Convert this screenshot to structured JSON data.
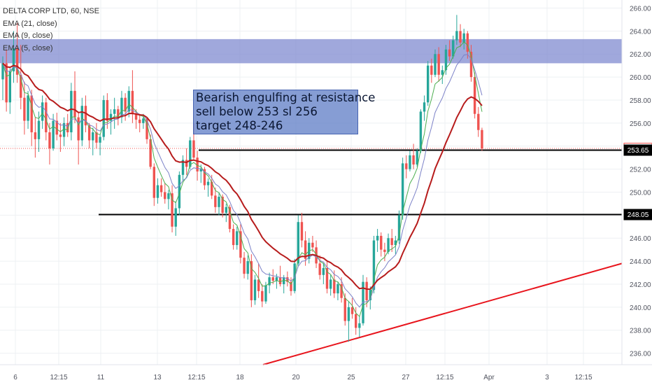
{
  "symbol_title": "DELTA CORP LTD, 60, NSE",
  "indicators": [
    "EMA (21, close)",
    "EMA (9, close)",
    "EMA (5, close)"
  ],
  "annotation": {
    "lines": [
      "Bearish engulfing at resistance",
      "sell below 253 sl 256",
      "target 248-246"
    ]
  },
  "colors": {
    "up": "#26a69a",
    "down": "#ef5350",
    "ema21": "#b71c1c",
    "ema9": "#7c82c8",
    "ema5": "#4caf50",
    "zone": "#7b86cf",
    "trendline": "#e8141c"
  },
  "chart_data": {
    "type": "candlestick",
    "ylim": [
      235,
      266.7
    ],
    "y_ticks": [
      236,
      238,
      240,
      242,
      244,
      246,
      248,
      250,
      252,
      254,
      256,
      258,
      260,
      262,
      264,
      266
    ],
    "x_ticks": [
      "6",
      "12:15",
      "11",
      "13",
      "12:15",
      "18",
      "20",
      "25",
      "27",
      "12:15",
      "Apr",
      "3",
      "12:15"
    ],
    "price_labels": [
      {
        "value": 253.8,
        "label": "253.80",
        "style": "current"
      },
      {
        "value": 253.65,
        "label": "253.65",
        "style": "level"
      },
      {
        "value": 248.05,
        "label": "248.05",
        "style": "level"
      }
    ],
    "resistance_zone": [
      261.2,
      263.3
    ],
    "levels": [
      253.65,
      248.05
    ],
    "trendline": {
      "from": 235.0,
      "to": 243.8
    },
    "candles": [
      [
        259.8,
        261.8,
        258.0,
        261.2
      ],
      [
        261.2,
        262.4,
        257.0,
        257.8
      ],
      [
        257.8,
        260.8,
        256.8,
        260.5
      ],
      [
        260.5,
        264.0,
        259.5,
        262.5
      ],
      [
        262.5,
        264.7,
        259.5,
        260.2
      ],
      [
        260.2,
        262.8,
        257.2,
        258.2
      ],
      [
        258.2,
        259.6,
        255.0,
        256.2
      ],
      [
        256.2,
        258.8,
        255.5,
        258.4
      ],
      [
        258.4,
        258.9,
        254.0,
        255.2
      ],
      [
        255.2,
        256.5,
        253.0,
        254.6
      ],
      [
        254.6,
        257.0,
        253.5,
        256.2
      ],
      [
        256.2,
        258.4,
        255.5,
        257.8
      ],
      [
        257.8,
        258.2,
        254.5,
        255.2
      ],
      [
        255.2,
        256.0,
        252.4,
        253.8
      ],
      [
        253.8,
        256.8,
        253.6,
        256.2
      ],
      [
        256.2,
        256.9,
        254.5,
        255.0
      ],
      [
        255.0,
        256.0,
        253.5,
        254.8
      ],
      [
        254.8,
        256.5,
        254.0,
        256.0
      ],
      [
        256.0,
        256.8,
        254.8,
        255.2
      ],
      [
        255.2,
        259.5,
        254.5,
        258.8
      ],
      [
        258.8,
        260.5,
        256.0,
        256.5
      ],
      [
        256.5,
        257.0,
        252.4,
        254.5
      ],
      [
        254.5,
        258.2,
        254.0,
        257.5
      ],
      [
        257.5,
        258.4,
        255.2,
        255.8
      ],
      [
        255.8,
        256.0,
        253.8,
        254.5
      ],
      [
        254.5,
        255.6,
        253.2,
        255.2
      ],
      [
        255.2,
        256.0,
        253.8,
        254.3
      ],
      [
        254.3,
        255.0,
        253.2,
        254.8
      ],
      [
        254.8,
        258.4,
        254.5,
        258.0
      ],
      [
        258.0,
        258.6,
        255.5,
        256.2
      ],
      [
        256.2,
        257.2,
        255.0,
        256.8
      ],
      [
        256.8,
        258.2,
        255.5,
        257.2
      ],
      [
        257.2,
        257.5,
        255.8,
        256.5
      ],
      [
        256.5,
        258.8,
        256.0,
        258.2
      ],
      [
        258.2,
        258.6,
        256.2,
        257.0
      ],
      [
        257.0,
        259.2,
        256.5,
        258.8
      ],
      [
        258.8,
        260.6,
        256.0,
        256.8
      ],
      [
        256.8,
        257.2,
        255.5,
        256.3
      ],
      [
        256.3,
        256.8,
        255.2,
        256.0
      ],
      [
        256.0,
        256.8,
        255.5,
        256.4
      ],
      [
        256.4,
        256.5,
        254.2,
        254.6
      ],
      [
        254.6,
        255.0,
        252.0,
        252.2
      ],
      [
        252.2,
        252.5,
        248.8,
        249.5
      ],
      [
        249.5,
        251.2,
        249.0,
        250.6
      ],
      [
        250.6,
        251.2,
        249.6,
        250.0
      ],
      [
        250.0,
        250.8,
        249.0,
        249.4
      ],
      [
        249.4,
        250.2,
        248.5,
        249.9
      ],
      [
        249.9,
        250.6,
        246.5,
        247.0
      ],
      [
        247.0,
        249.2,
        246.2,
        248.6
      ],
      [
        248.6,
        251.8,
        248.0,
        251.5
      ],
      [
        251.5,
        253.2,
        251.0,
        252.8
      ],
      [
        252.8,
        253.8,
        251.5,
        252.2
      ],
      [
        252.2,
        254.8,
        252.0,
        254.5
      ],
      [
        254.5,
        256.0,
        252.8,
        253.0
      ],
      [
        253.0,
        253.6,
        251.0,
        251.8
      ],
      [
        251.8,
        252.4,
        250.8,
        252.0
      ],
      [
        252.0,
        252.2,
        250.2,
        250.6
      ],
      [
        250.6,
        251.2,
        249.6,
        250.9
      ],
      [
        250.9,
        251.5,
        249.4,
        249.7
      ],
      [
        249.7,
        250.4,
        248.2,
        248.7
      ],
      [
        248.7,
        250.0,
        248.0,
        249.6
      ],
      [
        249.6,
        249.8,
        247.8,
        248.2
      ],
      [
        248.2,
        249.0,
        247.4,
        248.7
      ],
      [
        248.7,
        248.9,
        246.5,
        246.8
      ],
      [
        246.8,
        247.2,
        245.0,
        245.4
      ],
      [
        245.4,
        247.0,
        245.0,
        246.6
      ],
      [
        246.6,
        247.2,
        243.8,
        244.3
      ],
      [
        244.3,
        244.8,
        242.5,
        242.9
      ],
      [
        242.9,
        244.5,
        242.4,
        244.0
      ],
      [
        244.0,
        244.6,
        240.0,
        240.6
      ],
      [
        240.6,
        242.8,
        240.2,
        242.4
      ],
      [
        242.4,
        243.8,
        240.8,
        241.4
      ],
      [
        241.4,
        242.0,
        240.0,
        240.5
      ],
      [
        240.5,
        242.2,
        240.3,
        241.9
      ],
      [
        241.9,
        243.0,
        241.2,
        242.6
      ],
      [
        242.6,
        243.3,
        242.0,
        242.3
      ],
      [
        242.3,
        242.9,
        241.6,
        242.6
      ],
      [
        242.6,
        243.6,
        241.8,
        242.0
      ],
      [
        242.0,
        242.8,
        241.2,
        242.6
      ],
      [
        242.6,
        243.1,
        241.8,
        242.2
      ],
      [
        242.2,
        242.6,
        241.0,
        241.4
      ],
      [
        241.4,
        244.2,
        241.2,
        243.8
      ],
      [
        243.8,
        248.0,
        243.6,
        247.4
      ],
      [
        247.4,
        248.2,
        245.2,
        245.8
      ],
      [
        245.8,
        246.6,
        243.6,
        244.2
      ],
      [
        244.2,
        246.0,
        243.8,
        245.6
      ],
      [
        245.6,
        246.2,
        244.8,
        245.2
      ],
      [
        245.2,
        245.8,
        243.4,
        243.8
      ],
      [
        243.8,
        244.5,
        242.4,
        242.8
      ],
      [
        242.8,
        243.8,
        242.0,
        243.4
      ],
      [
        243.4,
        244.0,
        241.2,
        241.6
      ],
      [
        241.6,
        242.8,
        241.0,
        242.4
      ],
      [
        242.4,
        243.2,
        240.8,
        241.2
      ],
      [
        241.2,
        242.2,
        240.6,
        242.0
      ],
      [
        242.0,
        242.6,
        240.4,
        240.8
      ],
      [
        240.8,
        241.2,
        238.4,
        238.8
      ],
      [
        238.8,
        240.5,
        237.0,
        240.0
      ],
      [
        240.0,
        240.8,
        239.0,
        239.4
      ],
      [
        239.4,
        240.0,
        237.6,
        238.2
      ],
      [
        238.2,
        239.2,
        237.4,
        238.6
      ],
      [
        238.6,
        242.8,
        238.4,
        242.2
      ],
      [
        242.2,
        242.6,
        240.0,
        240.6
      ],
      [
        240.6,
        241.8,
        239.8,
        241.5
      ],
      [
        241.5,
        246.2,
        241.2,
        245.8
      ],
      [
        245.8,
        246.8,
        244.8,
        246.2
      ],
      [
        246.2,
        246.5,
        244.4,
        245.0
      ],
      [
        245.0,
        245.6,
        244.0,
        244.8
      ],
      [
        244.8,
        246.4,
        244.6,
        246.0
      ],
      [
        246.0,
        246.8,
        244.8,
        245.4
      ],
      [
        245.4,
        246.2,
        244.6,
        245.8
      ],
      [
        245.8,
        248.4,
        245.5,
        248.0
      ],
      [
        248.0,
        253.0,
        247.6,
        252.5
      ],
      [
        252.5,
        253.2,
        251.2,
        252.0
      ],
      [
        252.0,
        253.6,
        251.8,
        253.2
      ],
      [
        253.2,
        254.2,
        252.0,
        252.4
      ],
      [
        252.4,
        253.8,
        252.2,
        253.6
      ],
      [
        253.6,
        257.2,
        253.4,
        257.0
      ],
      [
        257.0,
        258.4,
        256.2,
        257.8
      ],
      [
        257.8,
        261.4,
        257.5,
        261.0
      ],
      [
        261.0,
        261.6,
        259.5,
        260.2
      ],
      [
        260.2,
        262.4,
        260.0,
        262.0
      ],
      [
        262.0,
        262.6,
        259.6,
        260.2
      ],
      [
        260.2,
        261.0,
        259.4,
        260.6
      ],
      [
        260.6,
        262.8,
        260.2,
        262.4
      ],
      [
        262.4,
        263.2,
        261.4,
        261.8
      ],
      [
        261.8,
        263.6,
        261.6,
        263.2
      ],
      [
        263.2,
        265.4,
        262.8,
        264.0
      ],
      [
        264.0,
        264.6,
        262.6,
        263.0
      ],
      [
        263.0,
        264.2,
        262.4,
        263.8
      ],
      [
        263.8,
        264.0,
        261.6,
        262.2
      ],
      [
        262.2,
        262.8,
        259.6,
        260.0
      ],
      [
        260.0,
        260.4,
        256.4,
        256.8
      ],
      [
        256.8,
        257.4,
        254.8,
        255.4
      ],
      [
        255.4,
        255.6,
        253.6,
        253.8
      ]
    ]
  }
}
